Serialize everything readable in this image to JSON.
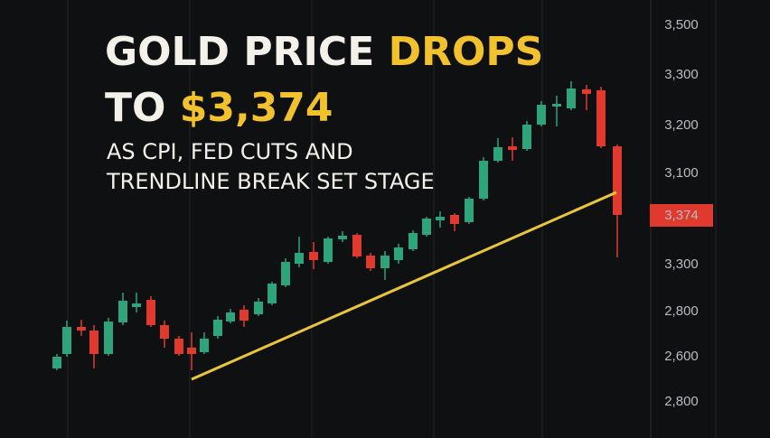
{
  "headline": {
    "line1": {
      "white": "GOLD PRICE",
      "accent": "DROPS"
    },
    "line2": {
      "white": "TO",
      "accent": "$3,374"
    }
  },
  "subheadline": {
    "line1": "AS CPI, FED CUTS AND",
    "line2": "TRENDLINE BREAK SET STAGE"
  },
  "axis_labels": [
    "3,500",
    "3,300",
    "3,200",
    "3,100",
    "3,374",
    "3,300",
    "2,800",
    "2,600",
    "2,800"
  ]
}
